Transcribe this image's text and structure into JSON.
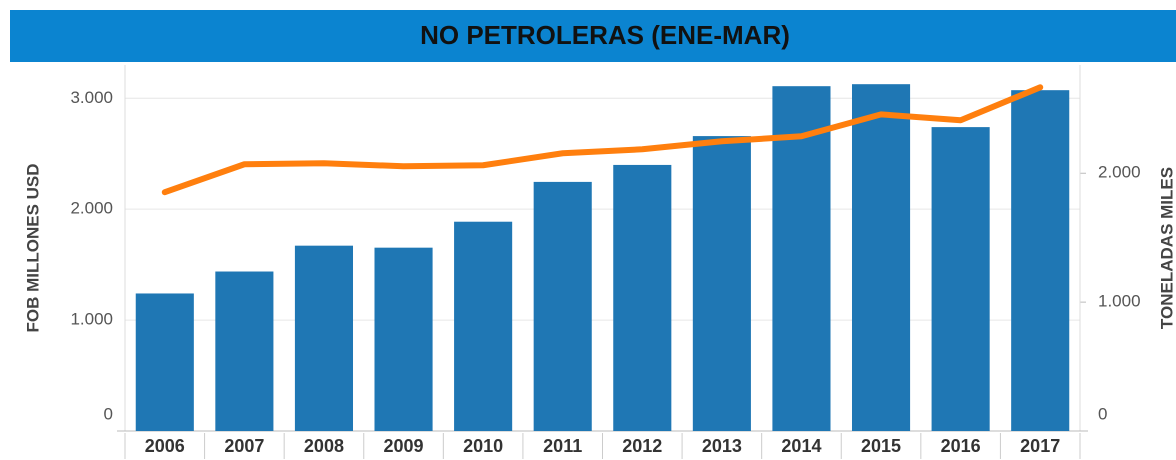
{
  "chart_data": {
    "type": "bar+line",
    "title": "NO PETROLERAS (ENE-MAR)",
    "ylabel": "FOB MILLONES USD",
    "y2label": "TONELADAS MILES",
    "categories": [
      "2006",
      "2007",
      "2008",
      "2009",
      "2010",
      "2011",
      "2012",
      "2013",
      "2014",
      "2015",
      "2016",
      "2017"
    ],
    "series": [
      {
        "type": "bar",
        "color": "#1f77b4",
        "values": [
          1240,
          1438,
          1671,
          1653,
          1887,
          2246,
          2399,
          2659,
          3109,
          3127,
          2740,
          3073
        ]
      },
      {
        "type": "line",
        "axis": "y2",
        "color": "#ff7f0e",
        "values": [
          1853,
          2070,
          2078,
          2054,
          2062,
          2155,
          2186,
          2248,
          2287,
          2457,
          2411,
          2667
        ]
      }
    ],
    "ylim": [
      0,
      3300
    ],
    "yticks": [
      0,
      {
        "value": 1000,
        "label": "1.000"
      },
      {
        "value": 2000,
        "label": "2.000"
      },
      {
        "value": 3000,
        "label": "3.000"
      }
    ],
    "y2lim": [
      0,
      2840
    ],
    "y2ticks": [
      0,
      {
        "value": 1000,
        "label": "1.000"
      },
      {
        "value": 2000,
        "label": "2.000"
      }
    ],
    "grid": true,
    "title_color": "#0b84d0"
  }
}
